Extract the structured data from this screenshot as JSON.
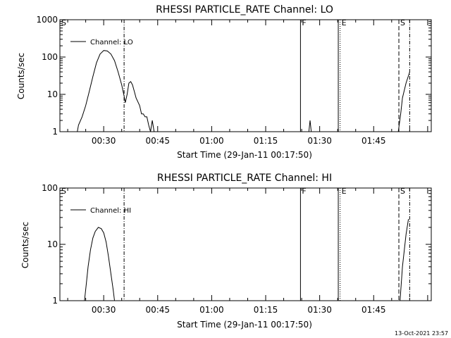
{
  "footer_timestamp": "13-Oct-2021 23:57",
  "chart_data": [
    {
      "type": "line",
      "title": "RHESSI PARTICLE_RATE Channel: LO",
      "xlabel": "Start Time (29-Jan-11 00:17:50)",
      "ylabel": "Counts/sec",
      "yscale": "log",
      "ylim": [
        1,
        1000
      ],
      "yticks": [
        "1",
        "10",
        "100",
        "1000"
      ],
      "xlim": [
        "00:17:50",
        "02:01:00"
      ],
      "xticks": [
        "00:30",
        "00:45",
        "01:00",
        "01:15",
        "01:30",
        "01:45"
      ],
      "legend": {
        "label": "Channel: LO",
        "position": "top-left"
      },
      "series": [
        {
          "name": "Channel: LO",
          "segments": [
            [
              [
                "00:22:40",
                1
              ],
              [
                "00:23:00",
                1.5
              ],
              [
                "00:24:00",
                2.5
              ],
              [
                "00:25:00",
                5
              ],
              [
                "00:26:00",
                12
              ],
              [
                "00:27:00",
                30
              ],
              [
                "00:28:00",
                70
              ],
              [
                "00:29:00",
                120
              ],
              [
                "00:30:00",
                150
              ],
              [
                "00:31:00",
                145
              ],
              [
                "00:32:00",
                120
              ],
              [
                "00:33:00",
                80
              ],
              [
                "00:34:00",
                40
              ],
              [
                "00:35:00",
                18
              ],
              [
                "00:35:40",
                9
              ],
              [
                "00:36:00",
                6
              ],
              [
                "00:36:30",
                10
              ],
              [
                "00:37:00",
                20
              ],
              [
                "00:37:30",
                22
              ],
              [
                "00:38:00",
                18
              ],
              [
                "00:38:30",
                12
              ],
              [
                "00:39:00",
                8
              ],
              [
                "00:40:00",
                5
              ],
              [
                "00:40:30",
                3
              ],
              [
                "00:41:00",
                3
              ],
              [
                "00:41:30",
                2.5
              ],
              [
                "00:42:00",
                2.5
              ],
              [
                "00:42:30",
                1.5
              ],
              [
                "00:43:00",
                1
              ],
              [
                "00:43:30",
                2
              ],
              [
                "00:44:00",
                1
              ]
            ],
            [
              [
                "01:27:00",
                1
              ],
              [
                "01:27:20",
                2
              ],
              [
                "01:27:40",
                1
              ]
            ],
            [
              [
                "01:51:50",
                1
              ],
              [
                "01:52:30",
                3
              ],
              [
                "01:53:00",
                8
              ],
              [
                "01:54:00",
                20
              ],
              [
                "01:55:00",
                40
              ]
            ]
          ]
        }
      ],
      "markers": [
        {
          "time": "00:17:50",
          "label": "S",
          "style": "solid"
        },
        {
          "time": "00:35:40",
          "label": "",
          "style": "dashdot"
        },
        {
          "time": "01:24:40",
          "label": "F",
          "style": "solid"
        },
        {
          "time": "01:35:10",
          "label": "",
          "style": "solid"
        },
        {
          "time": "01:35:40",
          "label": "E",
          "style": "dotted"
        },
        {
          "time": "01:52:00",
          "label": "S",
          "style": "dashed"
        },
        {
          "time": "01:55:00",
          "label": "",
          "style": "dashdot"
        }
      ]
    },
    {
      "type": "line",
      "title": "RHESSI PARTICLE_RATE Channel: HI",
      "xlabel": "Start Time (29-Jan-11 00:17:50)",
      "ylabel": "Counts/sec",
      "yscale": "log",
      "ylim": [
        1,
        100
      ],
      "yticks": [
        "1",
        "10",
        "100"
      ],
      "xlim": [
        "00:17:50",
        "02:01:00"
      ],
      "xticks": [
        "00:30",
        "00:45",
        "01:00",
        "01:15",
        "01:30",
        "01:45"
      ],
      "legend": {
        "label": "Channel: HI",
        "position": "top-left"
      },
      "series": [
        {
          "name": "Channel: HI",
          "segments": [
            [
              [
                "00:24:40",
                1
              ],
              [
                "00:25:10",
                2
              ],
              [
                "00:25:40",
                4
              ],
              [
                "00:26:20",
                8
              ],
              [
                "00:27:00",
                13
              ],
              [
                "00:27:40",
                17
              ],
              [
                "00:28:30",
                20
              ],
              [
                "00:29:20",
                19
              ],
              [
                "00:30:00",
                16
              ],
              [
                "00:30:40",
                11
              ],
              [
                "00:31:20",
                6
              ],
              [
                "00:32:00",
                3
              ],
              [
                "00:32:40",
                1.5
              ],
              [
                "00:33:00",
                1
              ]
            ],
            [
              [
                "01:52:20",
                1
              ],
              [
                "01:53:00",
                4
              ],
              [
                "01:54:00",
                15
              ],
              [
                "01:54:40",
                28
              ]
            ]
          ]
        }
      ],
      "markers": [
        {
          "time": "00:17:50",
          "label": "S",
          "style": "solid"
        },
        {
          "time": "00:35:40",
          "label": "",
          "style": "dashdot"
        },
        {
          "time": "01:24:40",
          "label": "F",
          "style": "solid"
        },
        {
          "time": "01:35:10",
          "label": "",
          "style": "solid"
        },
        {
          "time": "01:35:40",
          "label": "E",
          "style": "dotted"
        },
        {
          "time": "01:52:00",
          "label": "S",
          "style": "dashed"
        },
        {
          "time": "01:55:00",
          "label": "",
          "style": "dashdot"
        }
      ]
    }
  ]
}
